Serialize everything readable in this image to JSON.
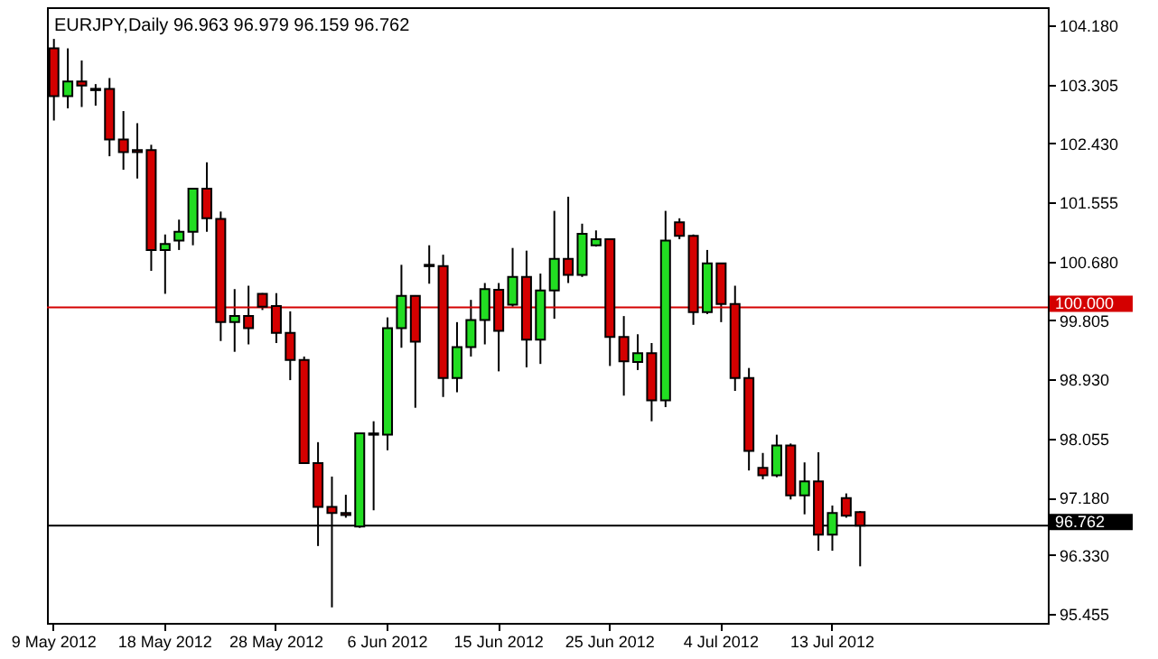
{
  "chart_data": {
    "type": "candlestick",
    "title": "EURJPY,Daily  96.963 96.979 96.159 96.762",
    "categories": [
      "9 May 2012",
      null,
      null,
      null,
      null,
      null,
      null,
      null,
      "18 May 2012",
      null,
      null,
      null,
      null,
      null,
      null,
      null,
      "28 May 2012",
      null,
      null,
      null,
      null,
      null,
      null,
      null,
      "6 Jun 2012",
      null,
      null,
      null,
      null,
      null,
      null,
      null,
      "15 Jun 2012",
      null,
      null,
      null,
      null,
      null,
      null,
      null,
      "25 Jun 2012",
      null,
      null,
      null,
      null,
      null,
      null,
      null,
      "4 Jul 2012",
      null,
      null,
      null,
      null,
      null,
      null,
      null,
      "13 Jul 2012",
      null,
      null,
      null,
      null,
      null,
      null,
      null,
      null,
      null,
      null,
      null,
      null,
      null,
      null,
      null
    ],
    "ohlc": [
      [
        103.84,
        103.98,
        102.77,
        103.13
      ],
      [
        103.13,
        103.84,
        102.95,
        103.35
      ],
      [
        103.35,
        103.66,
        102.97,
        103.29
      ],
      [
        103.24,
        103.31,
        102.99,
        103.22
      ],
      [
        103.24,
        103.4,
        102.24,
        102.49
      ],
      [
        102.49,
        102.91,
        102.04,
        102.3
      ],
      [
        102.33,
        102.73,
        101.91,
        102.3
      ],
      [
        102.33,
        102.41,
        100.54,
        100.85
      ],
      [
        100.85,
        101.08,
        100.2,
        100.94
      ],
      [
        100.99,
        101.3,
        100.85,
        101.12
      ],
      [
        101.12,
        101.76,
        100.92,
        101.76
      ],
      [
        101.76,
        102.15,
        101.12,
        101.32
      ],
      [
        101.31,
        101.42,
        99.5,
        99.78
      ],
      [
        99.78,
        100.27,
        99.34,
        99.87
      ],
      [
        99.87,
        100.32,
        99.45,
        99.69
      ],
      [
        100.2,
        100.21,
        99.96,
        100.01
      ],
      [
        100.02,
        100.21,
        99.47,
        99.62
      ],
      [
        99.62,
        99.94,
        98.92,
        99.22
      ],
      [
        99.22,
        99.27,
        97.69,
        97.69
      ],
      [
        97.69,
        98.0,
        96.46,
        97.04
      ],
      [
        97.04,
        97.49,
        95.55,
        96.95
      ],
      [
        96.95,
        97.22,
        96.88,
        96.92
      ],
      [
        96.75,
        98.13,
        96.73,
        98.13
      ],
      [
        98.13,
        98.31,
        96.99,
        98.11
      ],
      [
        98.11,
        99.85,
        97.88,
        99.69
      ],
      [
        99.69,
        100.63,
        99.4,
        100.17
      ],
      [
        100.17,
        100.18,
        98.51,
        99.49
      ],
      [
        100.63,
        100.92,
        100.35,
        100.61
      ],
      [
        100.61,
        100.78,
        98.67,
        98.95
      ],
      [
        98.95,
        99.78,
        98.74,
        99.41
      ],
      [
        99.41,
        100.11,
        99.27,
        99.81
      ],
      [
        99.81,
        100.36,
        99.45,
        100.27
      ],
      [
        100.26,
        100.36,
        99.05,
        99.65
      ],
      [
        100.04,
        100.88,
        100.01,
        100.45
      ],
      [
        100.45,
        100.84,
        99.11,
        99.52
      ],
      [
        99.52,
        100.5,
        99.16,
        100.25
      ],
      [
        100.25,
        101.43,
        99.83,
        100.72
      ],
      [
        100.72,
        101.64,
        100.36,
        100.48
      ],
      [
        100.48,
        101.24,
        100.45,
        101.09
      ],
      [
        100.92,
        101.14,
        100.9,
        101.01
      ],
      [
        101.01,
        101.01,
        99.13,
        99.56
      ],
      [
        99.56,
        99.87,
        98.69,
        99.2
      ],
      [
        99.19,
        99.6,
        99.07,
        99.32
      ],
      [
        99.32,
        99.47,
        98.31,
        98.62
      ],
      [
        98.62,
        101.43,
        98.52,
        100.99
      ],
      [
        101.26,
        101.32,
        101.01,
        101.06
      ],
      [
        101.06,
        101.08,
        99.74,
        99.93
      ],
      [
        99.93,
        100.85,
        99.9,
        100.65
      ],
      [
        100.65,
        100.66,
        99.78,
        100.05
      ],
      [
        100.05,
        100.32,
        98.76,
        98.95
      ],
      [
        98.95,
        99.1,
        97.58,
        97.87
      ],
      [
        97.62,
        97.84,
        97.45,
        97.51
      ],
      [
        97.51,
        98.11,
        97.48,
        97.95
      ],
      [
        97.95,
        97.98,
        97.15,
        97.21
      ],
      [
        97.21,
        97.7,
        96.93,
        97.42
      ],
      [
        97.42,
        97.85,
        96.39,
        96.63
      ],
      [
        96.63,
        97.06,
        96.39,
        96.95
      ],
      [
        97.17,
        97.24,
        96.88,
        96.91
      ],
      [
        96.963,
        96.979,
        96.159,
        96.762
      ],
      null,
      null,
      null,
      null,
      null,
      null,
      null,
      null,
      null,
      null,
      null,
      null,
      null
    ],
    "colors": [
      "#d40000",
      "#22dd22",
      "#d40000",
      "#d40000",
      "#d40000",
      "#d40000",
      "#d40000",
      "#d40000",
      "#22dd22",
      "#22dd22",
      "#22dd22",
      "#d40000",
      "#d40000",
      "#22dd22",
      "#d40000",
      "#d40000",
      "#d40000",
      "#d40000",
      "#d40000",
      "#d40000",
      "#d40000",
      "#d40000",
      "#22dd22",
      "#d40000",
      "#22dd22",
      "#22dd22",
      "#d40000",
      "#d40000",
      "#d40000",
      "#22dd22",
      "#22dd22",
      "#22dd22",
      "#d40000",
      "#22dd22",
      "#d40000",
      "#22dd22",
      "#22dd22",
      "#d40000",
      "#22dd22",
      "#22dd22",
      "#d40000",
      "#d40000",
      "#22dd22",
      "#d40000",
      "#22dd22",
      "#d40000",
      "#d40000",
      "#22dd22",
      "#d40000",
      "#d40000",
      "#d40000",
      "#d40000",
      "#22dd22",
      "#d40000",
      "#22dd22",
      "#d40000",
      "#22dd22",
      "#d40000",
      "#d40000",
      null,
      null,
      null,
      null,
      null,
      null,
      null,
      null,
      null,
      null,
      null,
      null,
      null
    ],
    "ylim": [
      95.32,
      104.45
    ],
    "yticks": [
      {
        "value": 95.455,
        "label": "95.455"
      },
      {
        "value": 96.33,
        "label": "96.330"
      },
      {
        "value": 97.18,
        "label": "97.180"
      },
      {
        "value": 98.055,
        "label": "98.055"
      },
      {
        "value": 98.93,
        "label": "98.930"
      },
      {
        "value": 99.805,
        "label": "99.805"
      },
      {
        "value": 100.68,
        "label": "100.680"
      },
      {
        "value": 101.555,
        "label": "101.555"
      },
      {
        "value": 102.43,
        "label": "102.430"
      },
      {
        "value": 103.305,
        "label": "103.305"
      },
      {
        "value": 104.18,
        "label": "104.180"
      }
    ],
    "ref_lines": [
      {
        "axis": "y",
        "value": 100,
        "label": "100.000",
        "color": "#d40000"
      },
      {
        "axis": "y",
        "value": 96.762,
        "label": "96.762",
        "color": "#000000"
      }
    ]
  }
}
